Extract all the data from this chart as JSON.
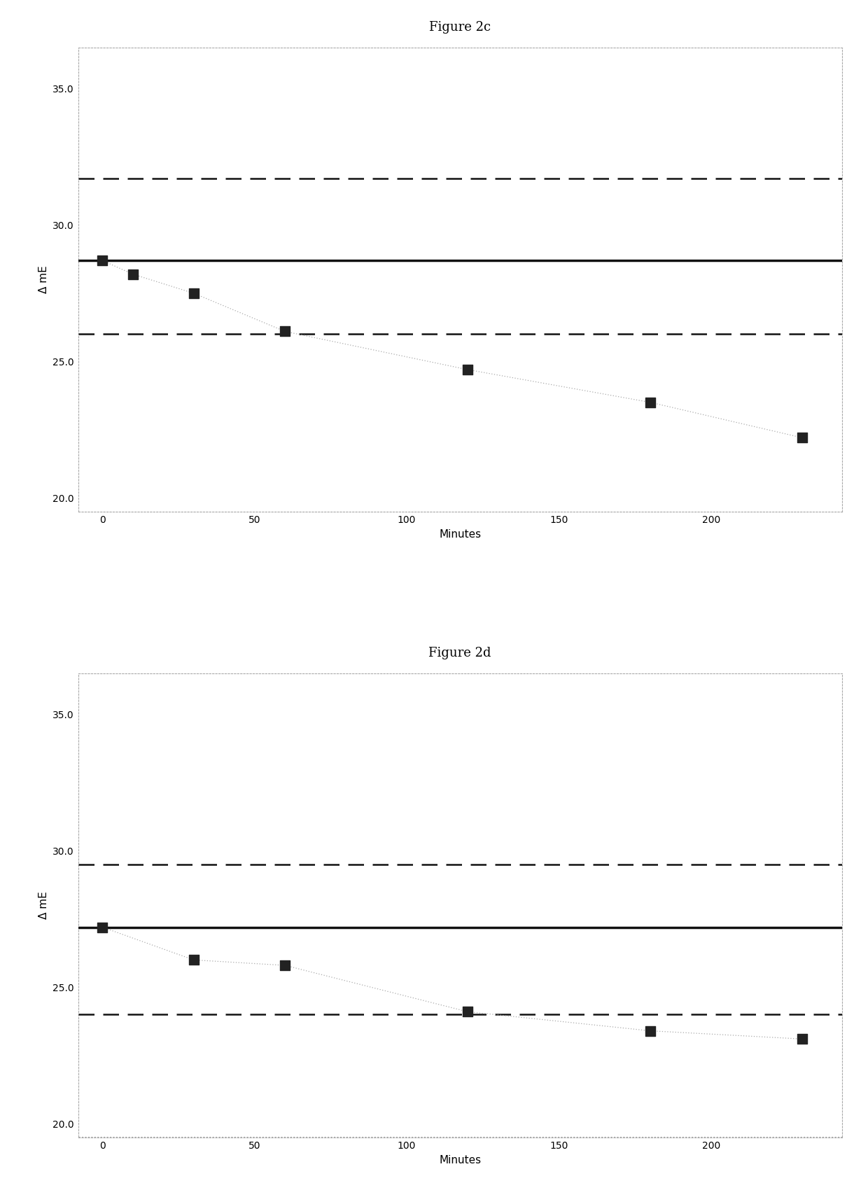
{
  "fig2c": {
    "title": "Figure 2c",
    "xlabel": "Minutes",
    "ylabel": "Δ mE",
    "xlim": [
      -8,
      243
    ],
    "ylim": [
      19.5,
      36.5
    ],
    "yticks": [
      20.0,
      25.0,
      30.0,
      35.0
    ],
    "xticks": [
      0,
      50,
      100,
      150,
      200
    ],
    "solid_line_y": 28.7,
    "upper_dashed_y": 31.7,
    "lower_dashed_y": 26.0,
    "data_x": [
      0,
      10,
      30,
      60,
      120,
      180,
      230
    ],
    "data_y": [
      28.7,
      28.2,
      27.5,
      26.1,
      24.7,
      23.5,
      22.2
    ]
  },
  "fig2d": {
    "title": "Figure 2d",
    "xlabel": "Minutes",
    "ylabel": "Δ mE",
    "xlim": [
      -8,
      243
    ],
    "ylim": [
      19.5,
      36.5
    ],
    "yticks": [
      20.0,
      25.0,
      30.0,
      35.0
    ],
    "xticks": [
      0,
      50,
      100,
      150,
      200
    ],
    "solid_line_y": 27.2,
    "upper_dashed_y": 29.5,
    "lower_dashed_y": 24.0,
    "data_x": [
      0,
      30,
      60,
      120,
      180,
      230
    ],
    "data_y": [
      27.2,
      26.0,
      25.8,
      24.1,
      23.4,
      23.1
    ]
  },
  "solid_lw": 2.5,
  "dashed_lw": 1.8,
  "dot_lw": 0.9,
  "marker_size": 90,
  "line_color": "#111111",
  "dashed_color": "#111111",
  "dot_color": "#aaaaaa",
  "marker_color": "#222222",
  "bg_color": "#ffffff",
  "panel_bg": "#ffffff",
  "border_color": "#aaaaaa",
  "title_fontsize": 13,
  "axis_label_fontsize": 11,
  "tick_fontsize": 10
}
